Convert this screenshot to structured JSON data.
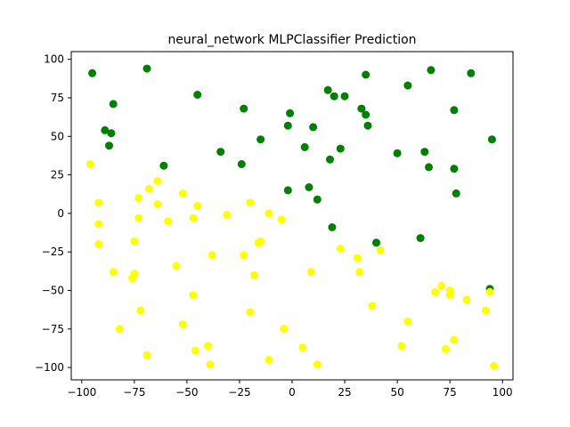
{
  "chart_data": {
    "type": "scatter",
    "title": "neural_network MLPClassifier Prediction",
    "xlabel": "",
    "ylabel": "",
    "xlim": [
      -105,
      105
    ],
    "ylim": [
      -108,
      105
    ],
    "xticks": [
      -100,
      -75,
      -50,
      -25,
      0,
      25,
      50,
      75,
      100
    ],
    "yticks": [
      -100,
      -75,
      -50,
      -25,
      0,
      25,
      50,
      75,
      100
    ],
    "grid": false,
    "series": [
      {
        "color": "#008000",
        "points": [
          [
            -95,
            91
          ],
          [
            -69,
            94
          ],
          [
            -85,
            71
          ],
          [
            -45,
            77
          ],
          [
            -89,
            54
          ],
          [
            -86,
            52
          ],
          [
            -87,
            44
          ],
          [
            -61,
            31
          ],
          [
            -34,
            40
          ],
          [
            -23,
            68
          ],
          [
            -24,
            32
          ],
          [
            -15,
            48
          ],
          [
            -2,
            57
          ],
          [
            -1,
            65
          ],
          [
            -2,
            15
          ],
          [
            6,
            43
          ],
          [
            8,
            17
          ],
          [
            10,
            56
          ],
          [
            12,
            9
          ],
          [
            17,
            80
          ],
          [
            18,
            35
          ],
          [
            20,
            76
          ],
          [
            19,
            -9
          ],
          [
            23,
            42
          ],
          [
            25,
            76
          ],
          [
            33,
            68
          ],
          [
            35,
            64
          ],
          [
            35,
            90
          ],
          [
            36,
            57
          ],
          [
            40,
            -19
          ],
          [
            50,
            39
          ],
          [
            55,
            83
          ],
          [
            61,
            -16
          ],
          [
            63,
            40
          ],
          [
            65,
            30
          ],
          [
            66,
            93
          ],
          [
            77,
            67
          ],
          [
            77,
            29
          ],
          [
            78,
            13
          ],
          [
            85,
            91
          ],
          [
            94,
            -49
          ],
          [
            95,
            48
          ]
        ]
      },
      {
        "color": "#ffff00",
        "points": [
          [
            -96,
            32
          ],
          [
            -92,
            7
          ],
          [
            -92,
            -7
          ],
          [
            -92,
            -20
          ],
          [
            -85,
            -38
          ],
          [
            -82,
            -75
          ],
          [
            -76,
            -42
          ],
          [
            -75,
            -39
          ],
          [
            -75,
            -18
          ],
          [
            -73,
            10
          ],
          [
            -73,
            -3
          ],
          [
            -72,
            -63
          ],
          [
            -69,
            -92
          ],
          [
            -68,
            16
          ],
          [
            -64,
            21
          ],
          [
            -64,
            6
          ],
          [
            -59,
            -5
          ],
          [
            -55,
            -34
          ],
          [
            -52,
            13
          ],
          [
            -52,
            -72
          ],
          [
            -47,
            -3
          ],
          [
            -47,
            -53
          ],
          [
            -46,
            -89
          ],
          [
            -45,
            5
          ],
          [
            -40,
            -86
          ],
          [
            -39,
            -98
          ],
          [
            -38,
            -27
          ],
          [
            -31,
            -1
          ],
          [
            -23,
            -27
          ],
          [
            -20,
            7
          ],
          [
            -20,
            -64
          ],
          [
            -18,
            -40
          ],
          [
            -16,
            -19
          ],
          [
            -15,
            -18
          ],
          [
            -11,
            0
          ],
          [
            -11,
            -95
          ],
          [
            -5,
            -4
          ],
          [
            -4,
            -75
          ],
          [
            5,
            -87
          ],
          [
            9,
            -38
          ],
          [
            12,
            -98
          ],
          [
            23,
            -23
          ],
          [
            31,
            -29
          ],
          [
            32,
            -38
          ],
          [
            38,
            -60
          ],
          [
            42,
            -24
          ],
          [
            52,
            -86
          ],
          [
            55,
            -70
          ],
          [
            68,
            -51
          ],
          [
            71,
            -47
          ],
          [
            73,
            -88
          ],
          [
            75,
            -50
          ],
          [
            75,
            -53
          ],
          [
            77,
            -82
          ],
          [
            83,
            -56
          ],
          [
            92,
            -63
          ],
          [
            94,
            -51
          ],
          [
            96,
            -99
          ]
        ]
      }
    ]
  }
}
